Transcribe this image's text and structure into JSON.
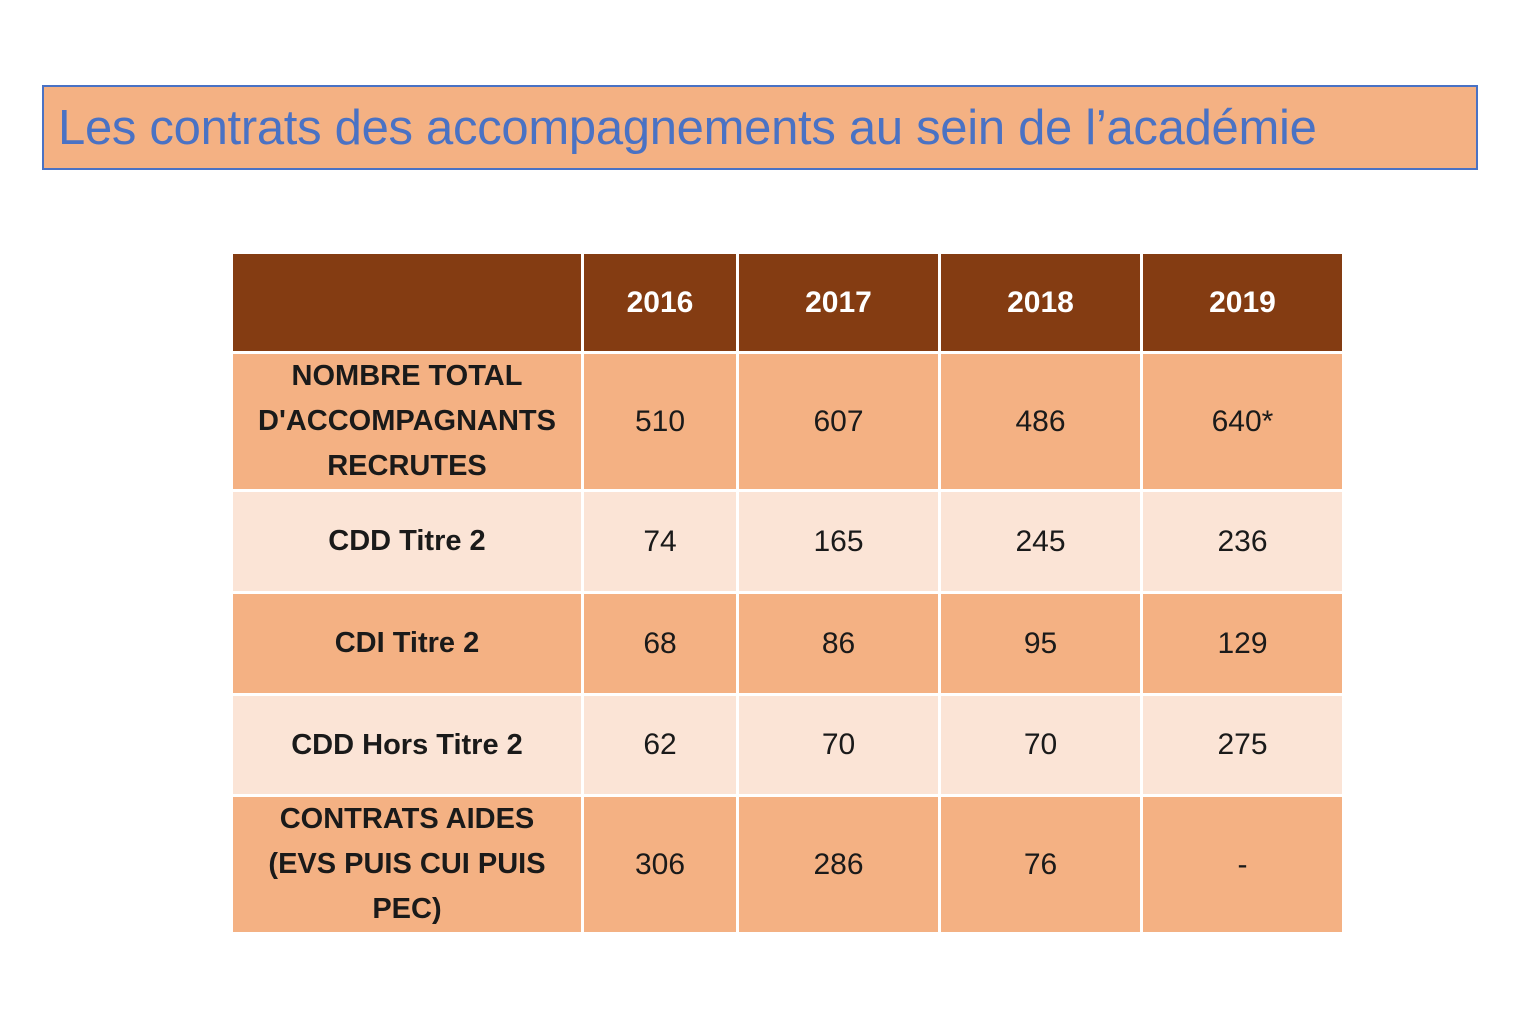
{
  "title": "Les contrats des accompagnements au sein de l’académie",
  "table": {
    "header": [
      "",
      "2016",
      "2017",
      "2018",
      "2019"
    ],
    "rows": [
      {
        "label_lines": [
          "NOMBRE TOTAL",
          "D'ACCOMPAGNANTS",
          "RECRUTES"
        ],
        "values": [
          "510",
          "607",
          "486",
          "640*"
        ]
      },
      {
        "label_lines": [
          "CDD Titre 2"
        ],
        "values": [
          "74",
          "165",
          "245",
          "236"
        ]
      },
      {
        "label_lines": [
          "CDI Titre 2"
        ],
        "values": [
          "68",
          "86",
          "95",
          "129"
        ]
      },
      {
        "label_lines": [
          "CDD Hors Titre 2"
        ],
        "values": [
          "62",
          "70",
          "70",
          "275"
        ]
      },
      {
        "label_lines": [
          "CONTRATS AIDES",
          "(EVS PUIS CUI PUIS",
          "PEC)"
        ],
        "values": [
          "306",
          "286",
          "76",
          "-"
        ]
      }
    ]
  },
  "colors": {
    "title_background": "#f4b183",
    "title_border": "#4a72c4",
    "title_text": "#4a72c4",
    "header_background": "#843c12",
    "row_dark": "#f4b183",
    "row_light": "#fbe4d6"
  }
}
